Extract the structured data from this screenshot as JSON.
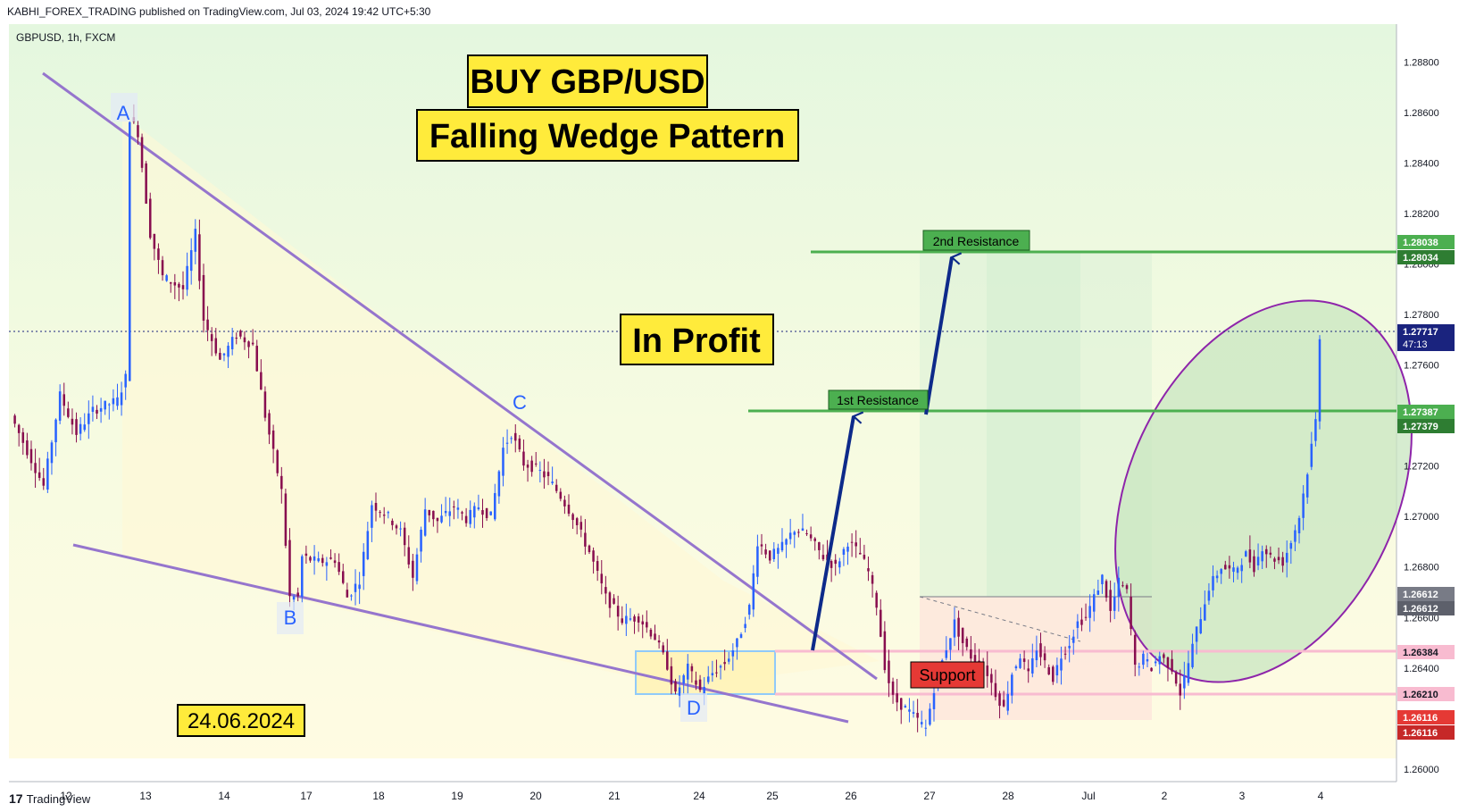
{
  "header": {
    "text": "KABHI_FOREX_TRADING published on TradingView.com, Jul 03, 2024 19:42 UTC+5:30"
  },
  "footer": {
    "logo_glyph": "17",
    "brand": "TradingView"
  },
  "symbol": "GBPUSD, 1h, FXCM",
  "colors": {
    "up_candle": "#2962ff",
    "down_candle": "#880e4f",
    "wedge_line": "#9575cd",
    "resistance": "#4caf50",
    "support_zone": "#ffcdd2",
    "profit_ellipse": "#8e24aa",
    "arrow": "#0d2a8a",
    "label_yellow": "#ffeb3b"
  },
  "annotations": {
    "title1": "BUY GBP/USD",
    "title2": "Falling Wedge Pattern",
    "in_profit": "In Profit",
    "date": "24.06.2024",
    "res1": "1st Resistance",
    "res2": "2nd Resistance",
    "support": "Support",
    "point_a": "A",
    "point_b": "B",
    "point_c": "C",
    "point_d": "D"
  },
  "chart_data": {
    "type": "candlestick",
    "ylim": [
      1.2595,
      1.2895
    ],
    "y_ticks": [
      "1.28800",
      "1.28600",
      "1.28400",
      "1.28200",
      "1.28000",
      "1.27800",
      "1.27600",
      "1.27400",
      "1.27200",
      "1.27000",
      "1.26800",
      "1.26600",
      "1.26400",
      "1.26200",
      "1.26000"
    ],
    "x_ticks": [
      "12",
      "13",
      "14",
      "17",
      "18",
      "19",
      "20",
      "21",
      "24",
      "25",
      "26",
      "27",
      "28",
      "Jul",
      "2",
      "3",
      "4"
    ],
    "price_badges": [
      {
        "text": "1.28038",
        "color": "#4caf50"
      },
      {
        "text": "1.28034",
        "color": "#2e7d32"
      },
      {
        "text": "1.27717",
        "color": "#1a237e",
        "sub": "47:13"
      },
      {
        "text": "1.27387",
        "color": "#4caf50"
      },
      {
        "text": "1.27379",
        "color": "#2e7d32"
      },
      {
        "text": "1.26612",
        "color": "#787b86"
      },
      {
        "text": "1.26612",
        "color": "#5d606b"
      },
      {
        "text": "1.26384",
        "color": "#f8bbd0"
      },
      {
        "text": "1.26210",
        "color": "#f8bbd0"
      },
      {
        "text": "1.26116",
        "color": "#e53935"
      },
      {
        "text": "1.26116",
        "color": "#c62828"
      }
    ],
    "levels": {
      "resistance_1": 1.27387,
      "resistance_2": 1.28034,
      "support_high": 1.26384,
      "support_low": 1.2621,
      "entry": 1.26612,
      "last": 1.27717
    },
    "anchors": [
      {
        "x": 0,
        "price": 1.274
      },
      {
        "x": 8,
        "price": 1.2712
      },
      {
        "x": 12,
        "price": 1.2748
      },
      {
        "x": 16,
        "price": 1.2733
      },
      {
        "x": 20,
        "price": 1.2742
      },
      {
        "x": 26,
        "price": 1.2746
      },
      {
        "x": 28,
        "price": 1.2755
      },
      {
        "x": 29,
        "price": 1.2858
      },
      {
        "x": 31,
        "price": 1.2852
      },
      {
        "x": 34,
        "price": 1.2812
      },
      {
        "x": 37,
        "price": 1.2795
      },
      {
        "x": 42,
        "price": 1.279
      },
      {
        "x": 45,
        "price": 1.2812
      },
      {
        "x": 47,
        "price": 1.2778
      },
      {
        "x": 51,
        "price": 1.2762
      },
      {
        "x": 55,
        "price": 1.2772
      },
      {
        "x": 59,
        "price": 1.2768
      },
      {
        "x": 62,
        "price": 1.274
      },
      {
        "x": 66,
        "price": 1.271
      },
      {
        "x": 68,
        "price": 1.2668
      },
      {
        "x": 70,
        "price": 1.2668
      },
      {
        "x": 71,
        "price": 1.2684
      },
      {
        "x": 75,
        "price": 1.2682
      },
      {
        "x": 79,
        "price": 1.2683
      },
      {
        "x": 82,
        "price": 1.2668
      },
      {
        "x": 85,
        "price": 1.2675
      },
      {
        "x": 88,
        "price": 1.2705
      },
      {
        "x": 92,
        "price": 1.27
      },
      {
        "x": 95,
        "price": 1.2694
      },
      {
        "x": 98,
        "price": 1.2676
      },
      {
        "x": 101,
        "price": 1.2703
      },
      {
        "x": 104,
        "price": 1.2698
      },
      {
        "x": 108,
        "price": 1.2704
      },
      {
        "x": 111,
        "price": 1.2699
      },
      {
        "x": 114,
        "price": 1.2704
      },
      {
        "x": 117,
        "price": 1.27
      },
      {
        "x": 120,
        "price": 1.2727
      },
      {
        "x": 122,
        "price": 1.2733
      },
      {
        "x": 125,
        "price": 1.2721
      },
      {
        "x": 128,
        "price": 1.2719
      },
      {
        "x": 131,
        "price": 1.2715
      },
      {
        "x": 134,
        "price": 1.2708
      },
      {
        "x": 137,
        "price": 1.27
      },
      {
        "x": 141,
        "price": 1.2686
      },
      {
        "x": 145,
        "price": 1.2668
      },
      {
        "x": 149,
        "price": 1.2659
      },
      {
        "x": 153,
        "price": 1.266
      },
      {
        "x": 157,
        "price": 1.2652
      },
      {
        "x": 160,
        "price": 1.2641
      },
      {
        "x": 162,
        "price": 1.2629
      },
      {
        "x": 165,
        "price": 1.264
      },
      {
        "x": 168,
        "price": 1.2631
      },
      {
        "x": 171,
        "price": 1.2638
      },
      {
        "x": 174,
        "price": 1.2642
      },
      {
        "x": 177,
        "price": 1.265
      },
      {
        "x": 180,
        "price": 1.2664
      },
      {
        "x": 182,
        "price": 1.269
      },
      {
        "x": 185,
        "price": 1.2684
      },
      {
        "x": 188,
        "price": 1.2688
      },
      {
        "x": 191,
        "price": 1.2695
      },
      {
        "x": 194,
        "price": 1.2693
      },
      {
        "x": 198,
        "price": 1.2684
      },
      {
        "x": 201,
        "price": 1.268
      },
      {
        "x": 204,
        "price": 1.269
      },
      {
        "x": 207,
        "price": 1.2685
      },
      {
        "x": 209,
        "price": 1.2678
      },
      {
        "x": 211,
        "price": 1.2665
      },
      {
        "x": 213,
        "price": 1.2641
      },
      {
        "x": 215,
        "price": 1.2628
      },
      {
        "x": 218,
        "price": 1.2624
      },
      {
        "x": 220,
        "price": 1.2621
      },
      {
        "x": 223,
        "price": 1.2616
      },
      {
        "x": 225,
        "price": 1.2632
      },
      {
        "x": 228,
        "price": 1.2648
      },
      {
        "x": 230,
        "price": 1.2658
      },
      {
        "x": 232,
        "price": 1.265
      },
      {
        "x": 235,
        "price": 1.2642
      },
      {
        "x": 238,
        "price": 1.2638
      },
      {
        "x": 240,
        "price": 1.263
      },
      {
        "x": 242,
        "price": 1.2624
      },
      {
        "x": 244,
        "price": 1.2638
      },
      {
        "x": 246,
        "price": 1.2645
      },
      {
        "x": 248,
        "price": 1.2637
      },
      {
        "x": 250,
        "price": 1.2648
      },
      {
        "x": 252,
        "price": 1.2642
      },
      {
        "x": 254,
        "price": 1.2636
      },
      {
        "x": 256,
        "price": 1.2645
      },
      {
        "x": 258,
        "price": 1.265
      },
      {
        "x": 260,
        "price": 1.2658
      },
      {
        "x": 262,
        "price": 1.266
      },
      {
        "x": 264,
        "price": 1.2668
      },
      {
        "x": 266,
        "price": 1.2676
      },
      {
        "x": 268,
        "price": 1.2662
      },
      {
        "x": 270,
        "price": 1.2674
      },
      {
        "x": 272,
        "price": 1.267
      },
      {
        "x": 274,
        "price": 1.264
      },
      {
        "x": 276,
        "price": 1.2644
      },
      {
        "x": 278,
        "price": 1.264
      },
      {
        "x": 280,
        "price": 1.2645
      },
      {
        "x": 283,
        "price": 1.264
      },
      {
        "x": 285,
        "price": 1.263
      },
      {
        "x": 287,
        "price": 1.2642
      },
      {
        "x": 289,
        "price": 1.2655
      },
      {
        "x": 292,
        "price": 1.2672
      },
      {
        "x": 295,
        "price": 1.268
      },
      {
        "x": 298,
        "price": 1.2678
      },
      {
        "x": 301,
        "price": 1.2685
      },
      {
        "x": 303,
        "price": 1.268
      },
      {
        "x": 305,
        "price": 1.2688
      },
      {
        "x": 307,
        "price": 1.2684
      },
      {
        "x": 310,
        "price": 1.2682
      },
      {
        "x": 312,
        "price": 1.269
      },
      {
        "x": 314,
        "price": 1.27
      },
      {
        "x": 316,
        "price": 1.2718
      },
      {
        "x": 318,
        "price": 1.2738
      },
      {
        "x": 319,
        "price": 1.27717
      }
    ]
  }
}
